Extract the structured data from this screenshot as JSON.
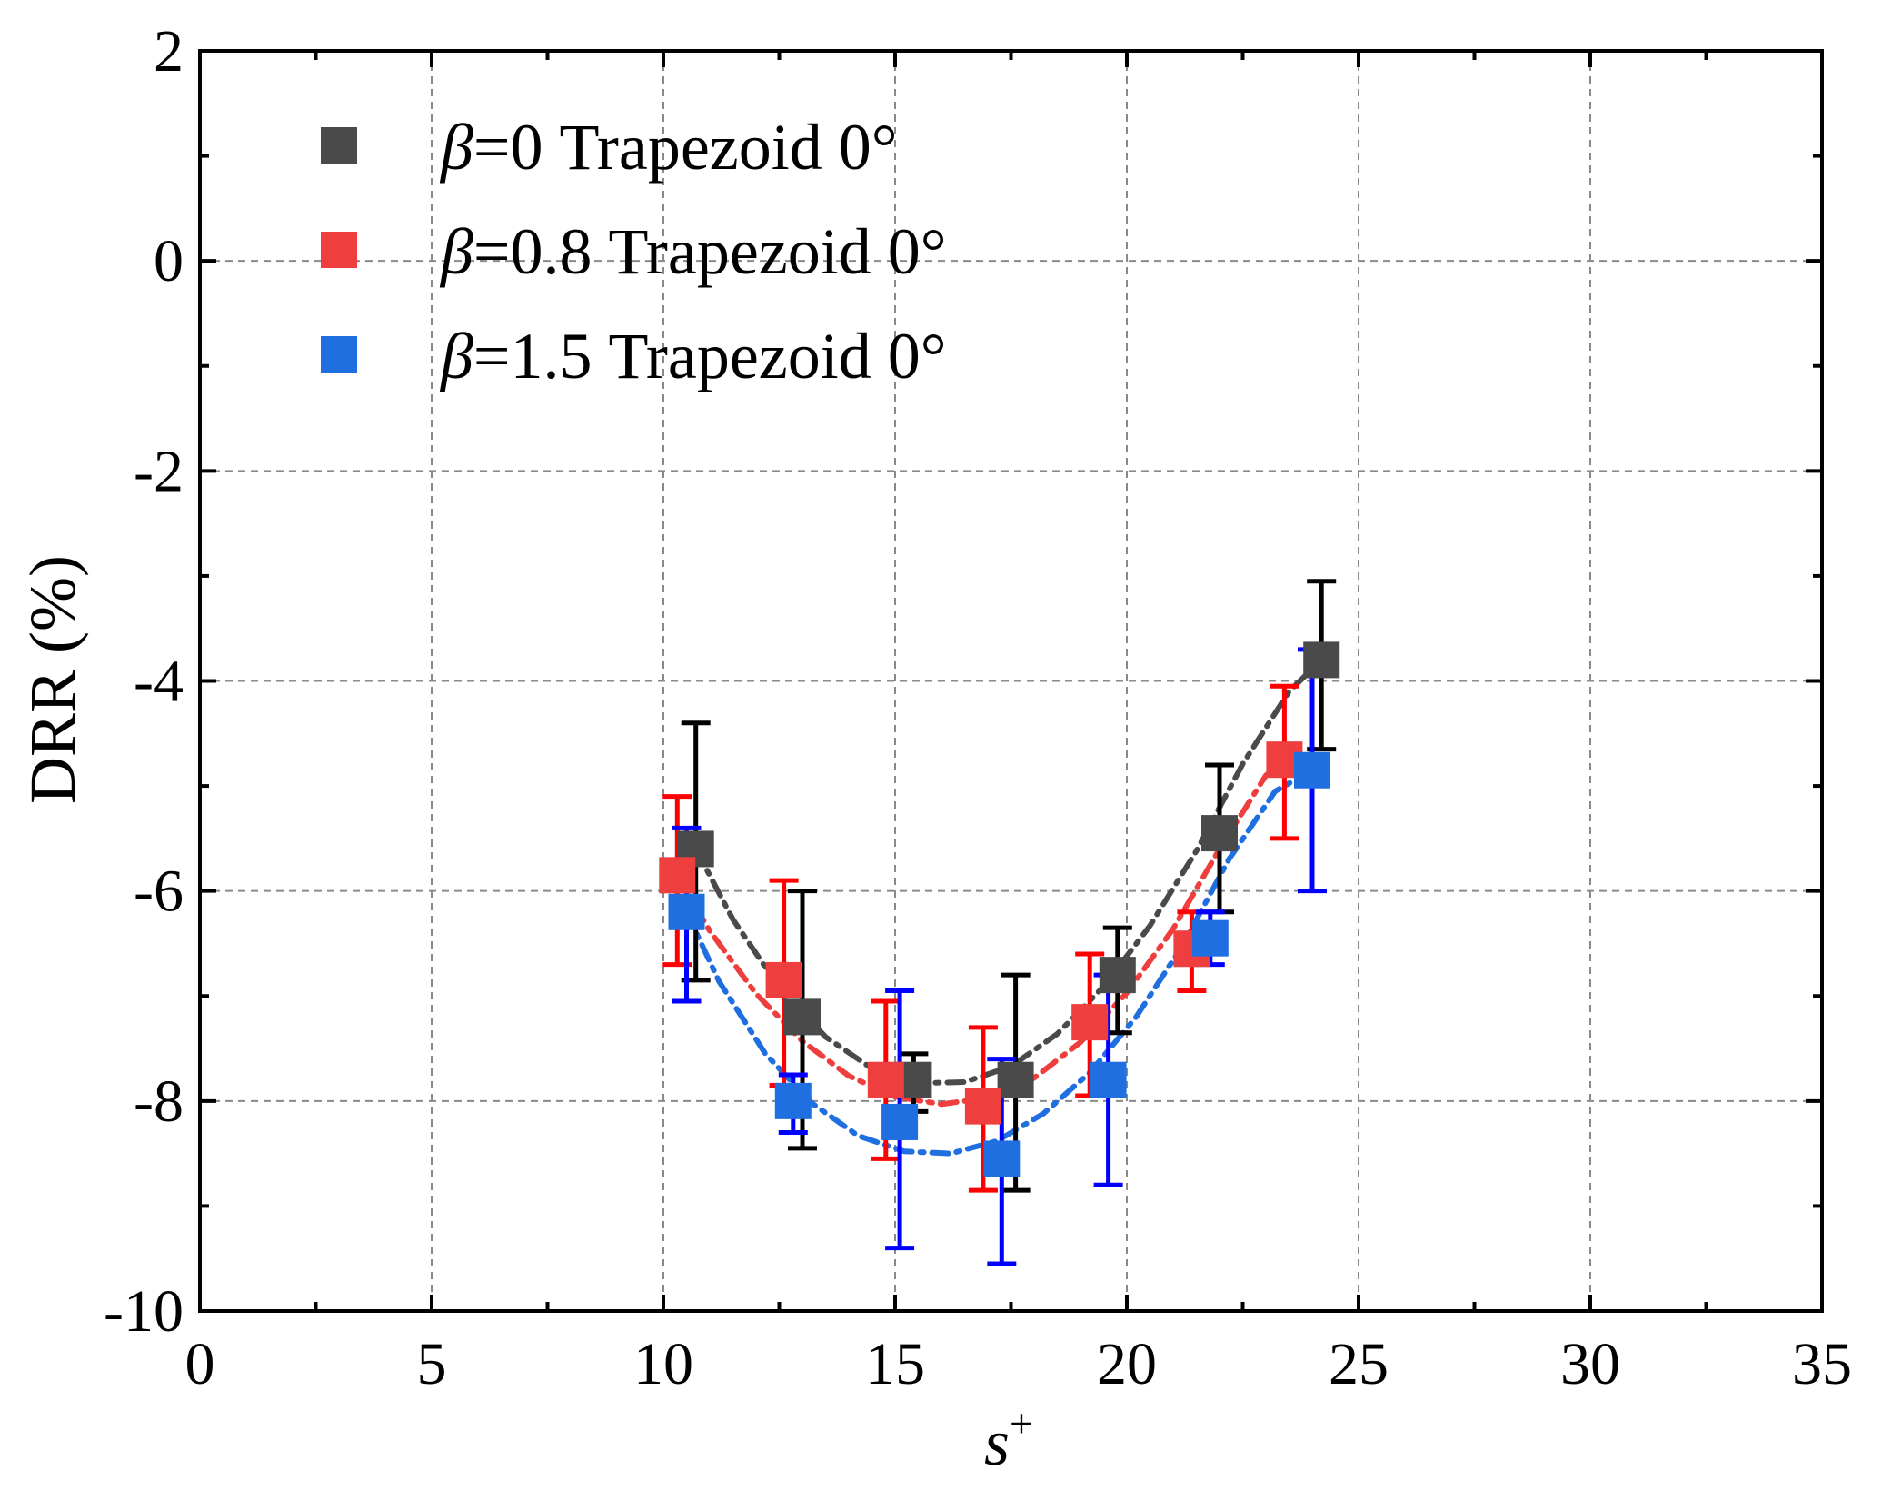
{
  "chart_data": {
    "type": "scatter",
    "title": "",
    "xlabel": "s",
    "xlabel_superscript": "+",
    "ylabel": "DRR (%)",
    "xlim": [
      0,
      35
    ],
    "ylim": [
      -10,
      2
    ],
    "x_major_ticks": [
      0,
      5,
      10,
      15,
      20,
      25,
      30,
      35
    ],
    "y_major_ticks": [
      -10,
      -8,
      -6,
      -4,
      -2,
      0,
      2
    ],
    "x_tick_labels": [
      "0",
      "5",
      "10",
      "15",
      "20",
      "25",
      "30",
      "35"
    ],
    "y_tick_labels": [
      "-10",
      "-8",
      "-6",
      "-4",
      "-2",
      "0",
      "2"
    ],
    "grid": true,
    "legend_position": "top-left",
    "series": [
      {
        "name": "β=0 Trapezoid 0°",
        "legend_symbol": "β",
        "legend_text": "=0 Trapezoid 0°",
        "marker_color": "#4a4a4a",
        "errorbar_color": "#000000",
        "x": [
          10.7,
          13.0,
          15.4,
          17.6,
          19.8,
          22.0,
          24.2
        ],
        "y": [
          -5.6,
          -7.2,
          -7.8,
          -7.8,
          -6.8,
          -5.45,
          -3.8
        ],
        "err_low": [
          -6.85,
          -8.45,
          -8.1,
          -8.85,
          -7.35,
          -6.2,
          -4.65
        ],
        "err_high": [
          -4.4,
          -6.0,
          -7.55,
          -6.8,
          -6.35,
          -4.8,
          -3.05
        ],
        "fit_x": [
          10.7,
          11.5,
          12.5,
          13.5,
          14.5,
          15.5,
          16.5,
          17.5,
          18.5,
          19.5,
          20.5,
          21.5,
          22.5,
          23.5,
          24.2
        ],
        "fit_y": [
          -5.6,
          -6.27,
          -6.92,
          -7.39,
          -7.69,
          -7.83,
          -7.82,
          -7.67,
          -7.36,
          -6.91,
          -6.33,
          -5.62,
          -4.79,
          -4.1,
          -3.8
        ]
      },
      {
        "name": "β=0.8 Trapezoid 0°",
        "legend_symbol": "β",
        "legend_text": "=0.8 Trapezoid 0°",
        "marker_color": "#ef3e3e",
        "errorbar_color": "#ff0000",
        "x": [
          10.3,
          12.6,
          14.8,
          16.9,
          19.2,
          21.4,
          23.4
        ],
        "y": [
          -5.85,
          -6.85,
          -7.8,
          -8.05,
          -7.25,
          -6.55,
          -4.75
        ],
        "err_low": [
          -6.7,
          -7.85,
          -8.55,
          -8.85,
          -7.95,
          -6.95,
          -5.5
        ],
        "err_high": [
          -5.1,
          -5.9,
          -7.05,
          -7.3,
          -6.6,
          -6.2,
          -4.05
        ],
        "fit_x": [
          10.3,
          11.0,
          12.0,
          13.0,
          14.0,
          15.0,
          16.0,
          17.0,
          18.0,
          19.0,
          20.0,
          21.0,
          22.0,
          23.0,
          23.4
        ],
        "fit_y": [
          -5.85,
          -6.38,
          -6.98,
          -7.43,
          -7.76,
          -7.96,
          -8.03,
          -7.97,
          -7.78,
          -7.44,
          -6.97,
          -6.36,
          -5.6,
          -4.9,
          -4.75
        ]
      },
      {
        "name": "β=1.5 Trapezoid 0°",
        "legend_symbol": "β",
        "legend_text": "=1.5 Trapezoid 0°",
        "marker_color": "#1f6fe0",
        "errorbar_color": "#0000ff",
        "x": [
          10.5,
          12.8,
          15.1,
          17.3,
          19.6,
          21.8,
          24.0
        ],
        "y": [
          -6.2,
          -8.0,
          -8.2,
          -8.55,
          -7.8,
          -6.45,
          -4.85
        ],
        "err_low": [
          -7.05,
          -8.3,
          -9.4,
          -9.55,
          -8.8,
          -6.7,
          -6.0
        ],
        "err_high": [
          -5.4,
          -7.75,
          -6.95,
          -7.6,
          -6.8,
          -6.2,
          -3.7
        ],
        "fit_x": [
          10.5,
          11.2,
          12.2,
          13.2,
          14.2,
          15.2,
          16.2,
          17.2,
          18.2,
          19.2,
          20.2,
          21.2,
          22.2,
          23.2,
          24.0
        ],
        "fit_y": [
          -6.2,
          -6.86,
          -7.55,
          -8.02,
          -8.33,
          -8.48,
          -8.5,
          -8.38,
          -8.12,
          -7.73,
          -7.2,
          -6.52,
          -5.7,
          -5.05,
          -4.85
        ]
      }
    ]
  }
}
